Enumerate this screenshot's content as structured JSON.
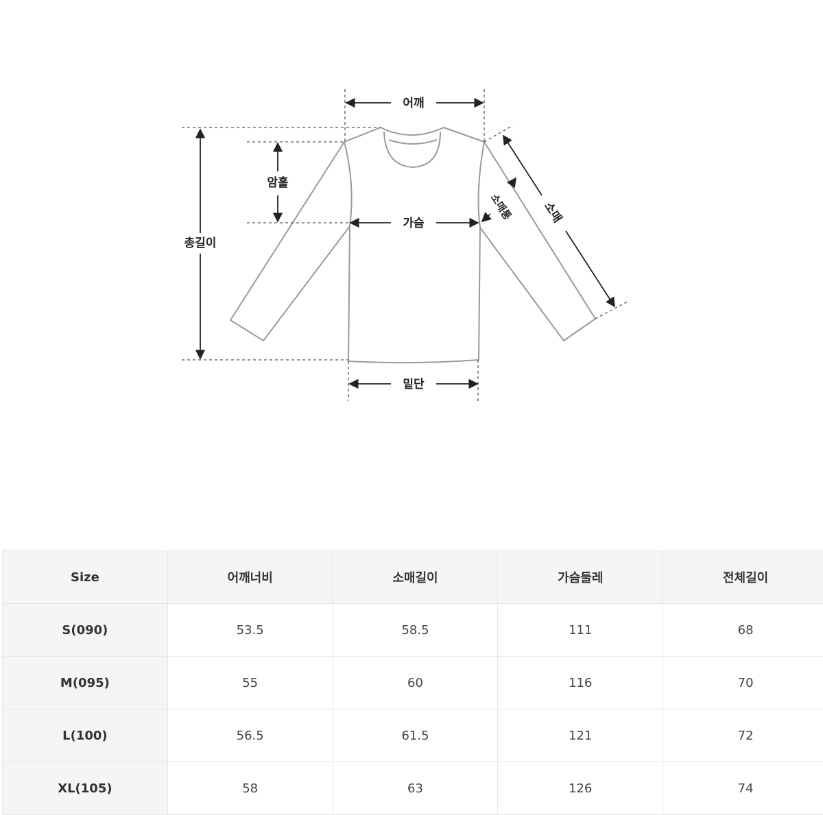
{
  "diagram": {
    "labels": {
      "shoulder": "어깨",
      "armhole": "암홀",
      "chest": "가슴",
      "total_length": "총길이",
      "sleeve": "소매",
      "sleeve_width": "소매통",
      "hem": "밑단"
    }
  },
  "table": {
    "headers": [
      "Size",
      "어깨너비",
      "소매길이",
      "가슴둘레",
      "전체길이"
    ],
    "rows": [
      [
        "S(090)",
        "53.5",
        "58.5",
        "111",
        "68"
      ],
      [
        "M(095)",
        "55",
        "60",
        "116",
        "70"
      ],
      [
        "L(100)",
        "56.5",
        "61.5",
        "121",
        "72"
      ],
      [
        "XL(105)",
        "58",
        "63",
        "126",
        "74"
      ]
    ]
  }
}
